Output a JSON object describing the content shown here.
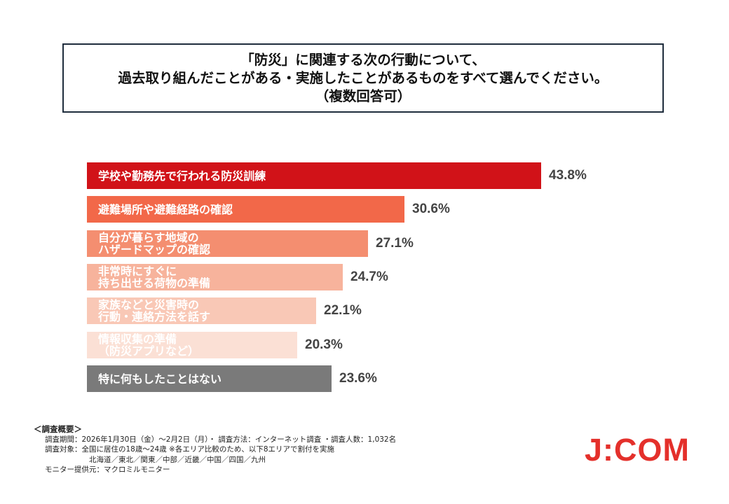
{
  "question": {
    "line1": "「防災」に関連する次の行動について、",
    "line2": "過去取り組んだことがある・実施したことがあるものをすべて選んでください。",
    "line3": "（複数回答可）"
  },
  "chart_data": {
    "type": "bar",
    "orientation": "horizontal",
    "title": "「防災」に関連する次の行動について、過去取り組んだことがある・実施したことがあるものをすべて選んでください。（複数回答可）",
    "categories": [
      "学校や勤務先で行われる防災訓練",
      "避難場所や避難経路の確認",
      "自分が暮らす地域のハザードマップの確認",
      "非常時にすぐに持ち出せる荷物の準備",
      "家族などと災害時の行動・連絡方法を話す",
      "情報収集の準備（防災アプリなど）",
      "特に何もしたことはない"
    ],
    "label_lines": [
      [
        "学校や勤務先で行われる防災訓練"
      ],
      [
        "避難場所や避難経路の確認"
      ],
      [
        "自分が暮らす地域の",
        "ハザードマップの確認"
      ],
      [
        "非常時にすぐに",
        "持ち出せる荷物の準備"
      ],
      [
        "家族などと災害時の",
        "行動・連絡方法を話す"
      ],
      [
        "情報収集の準備",
        "（防災アプリなど）"
      ],
      [
        "特に何もしたことはない"
      ]
    ],
    "values": [
      43.8,
      30.6,
      27.1,
      24.7,
      22.1,
      20.3,
      23.6
    ],
    "value_labels": [
      "43.8%",
      "30.6%",
      "27.1%",
      "24.7%",
      "22.1%",
      "20.3%",
      "23.6%"
    ],
    "unit": "%",
    "bar_colors": [
      "#d11218",
      "#f26849",
      "#f48e70",
      "#f7b39c",
      "#f9c8b6",
      "#fbe0d5",
      "#7a7a7a"
    ],
    "label_colors": [
      "#ffffff",
      "#ffffff",
      "#ffffff",
      "#ffffff",
      "#ffffff",
      "#ffffff",
      "#ffffff"
    ],
    "xlim": [
      0,
      43.8
    ]
  },
  "survey": {
    "heading": "＜調査概要＞",
    "period": "調査期間：2026年1月30日（金）～2月2日（月）・ 調査方法：インターネット調査 ・調査人数：1,032名",
    "target": "調査対象：全国に居住の18歳～24歳 ※各エリア比較のため、以下8エリアで割付を実施",
    "areas": "北海道／東北／関東／中部／近畿／中国／四国／九州",
    "provider": "モニター提供元：マクロミルモニター"
  },
  "logo": {
    "text": "J:COM",
    "color": "#e4302b"
  }
}
